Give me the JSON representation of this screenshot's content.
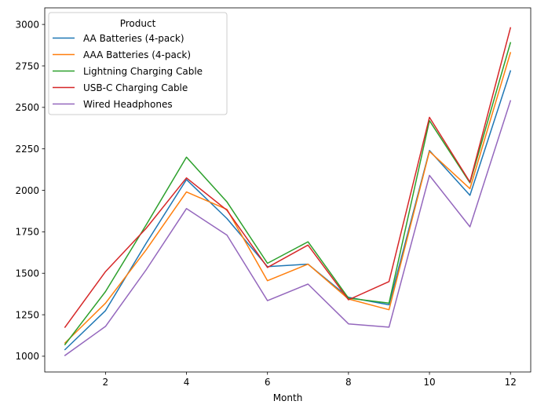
{
  "chart_data": {
    "type": "line",
    "xlabel": "Month",
    "ylabel": "",
    "xlim": [
      0.5,
      12.5
    ],
    "ylim": [
      905,
      3100
    ],
    "x_ticks": [
      2,
      4,
      6,
      8,
      10,
      12
    ],
    "y_ticks": [
      1000,
      1250,
      1500,
      1750,
      2000,
      2250,
      2500,
      2750,
      3000
    ],
    "grid": false,
    "legend": {
      "title": "Product",
      "placement": "top-left"
    },
    "x": [
      1,
      2,
      3,
      4,
      5,
      6,
      7,
      8,
      9,
      10,
      11,
      12
    ],
    "series": [
      {
        "name": "AA Batteries (4-pack)",
        "color": "#1f77b4",
        "values": [
          1040,
          1275,
          1680,
          2065,
          1830,
          1540,
          1555,
          1355,
          1310,
          2240,
          1970,
          2720
        ]
      },
      {
        "name": "AAA Batteries (4-pack)",
        "color": "#ff7f0e",
        "values": [
          1080,
          1320,
          1640,
          1990,
          1885,
          1455,
          1555,
          1345,
          1280,
          2235,
          2010,
          2830
        ]
      },
      {
        "name": "Lightning Charging Cable",
        "color": "#2ca02c",
        "values": [
          1070,
          1390,
          1790,
          2200,
          1930,
          1560,
          1690,
          1350,
          1320,
          2420,
          2045,
          2890
        ]
      },
      {
        "name": "USB-C Charging Cable",
        "color": "#d62728",
        "values": [
          1175,
          1510,
          1770,
          2075,
          1880,
          1535,
          1670,
          1340,
          1450,
          2440,
          2050,
          2980
        ]
      },
      {
        "name": "Wired Headphones",
        "color": "#9467bd",
        "values": [
          1005,
          1180,
          1520,
          1890,
          1730,
          1335,
          1435,
          1195,
          1175,
          2090,
          1780,
          2540
        ]
      }
    ]
  }
}
